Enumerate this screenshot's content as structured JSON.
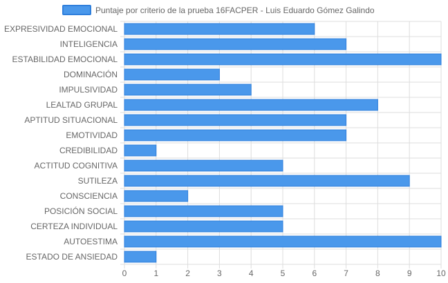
{
  "chart_data": {
    "type": "bar",
    "orientation": "horizontal",
    "categories": [
      "EXPRESIVIDAD EMOCIONAL",
      "INTELIGENCIA",
      "ESTABILIDAD EMOCIONAL",
      "DOMINACIÓN",
      "IMPULSIVIDAD",
      "LEALTAD GRUPAL",
      "APTITUD SITUACIONAL",
      "EMOTIVIDAD",
      "CREDIBILIDAD",
      "ACTITUD COGNITIVA",
      "SUTILEZA",
      "CONSCIENCIA",
      "POSICIÓN SOCIAL",
      "CERTEZA INDIVIDUAL",
      "AUTOESTIMA",
      "ESTADO DE ANSIEDAD"
    ],
    "series": [
      {
        "name": "Puntaje por criterio de la prueba 16FACPER - Luis Eduardo Gómez Galindo",
        "values": [
          6,
          7,
          10,
          3,
          4,
          8,
          7,
          7,
          1,
          5,
          9,
          2,
          5,
          5,
          10,
          1
        ]
      }
    ],
    "xlim": [
      0,
      10
    ],
    "xticks": [
      "0",
      "1",
      "2",
      "3",
      "4",
      "5",
      "6",
      "7",
      "8",
      "9",
      "10"
    ],
    "grid": true,
    "legend_position": "top",
    "colors": {
      "bar_fill": "#4a98eb",
      "bar_stroke": "#2f7fdc",
      "grid": "#dddddd",
      "axis_text": "#666666"
    }
  }
}
